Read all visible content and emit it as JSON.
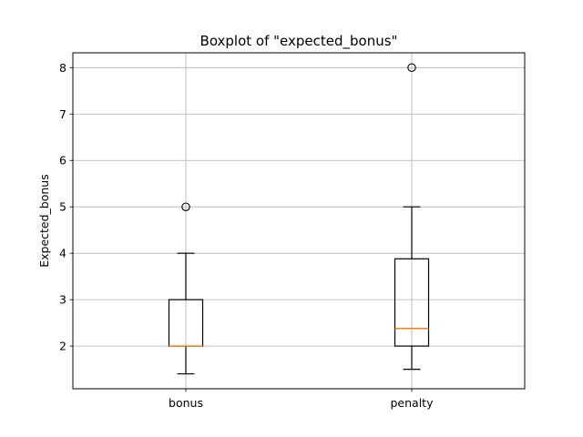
{
  "chart_data": {
    "type": "box",
    "title": "Boxplot of \"expected_bonus\"",
    "xlabel": "",
    "ylabel": "Expected_bonus",
    "categories": [
      "bonus",
      "penalty"
    ],
    "boxes": [
      {
        "category": "bonus",
        "whisker_low": 1.4,
        "q1": 2.0,
        "median": 2.0,
        "q3": 3.0,
        "whisker_high": 4.0,
        "outliers": [
          5.0
        ]
      },
      {
        "category": "penalty",
        "whisker_low": 1.5,
        "q1": 2.0,
        "median": 2.38,
        "q3": 3.88,
        "whisker_high": 5.0,
        "outliers": [
          8.0
        ]
      }
    ],
    "ylim": [
      1.08,
      8.32
    ],
    "yticks": [
      2,
      3,
      4,
      5,
      6,
      7,
      8
    ],
    "grid": true,
    "colors": {
      "box": "#000000",
      "median": "#ff7f0e",
      "grid": "#b0b0b0"
    }
  }
}
